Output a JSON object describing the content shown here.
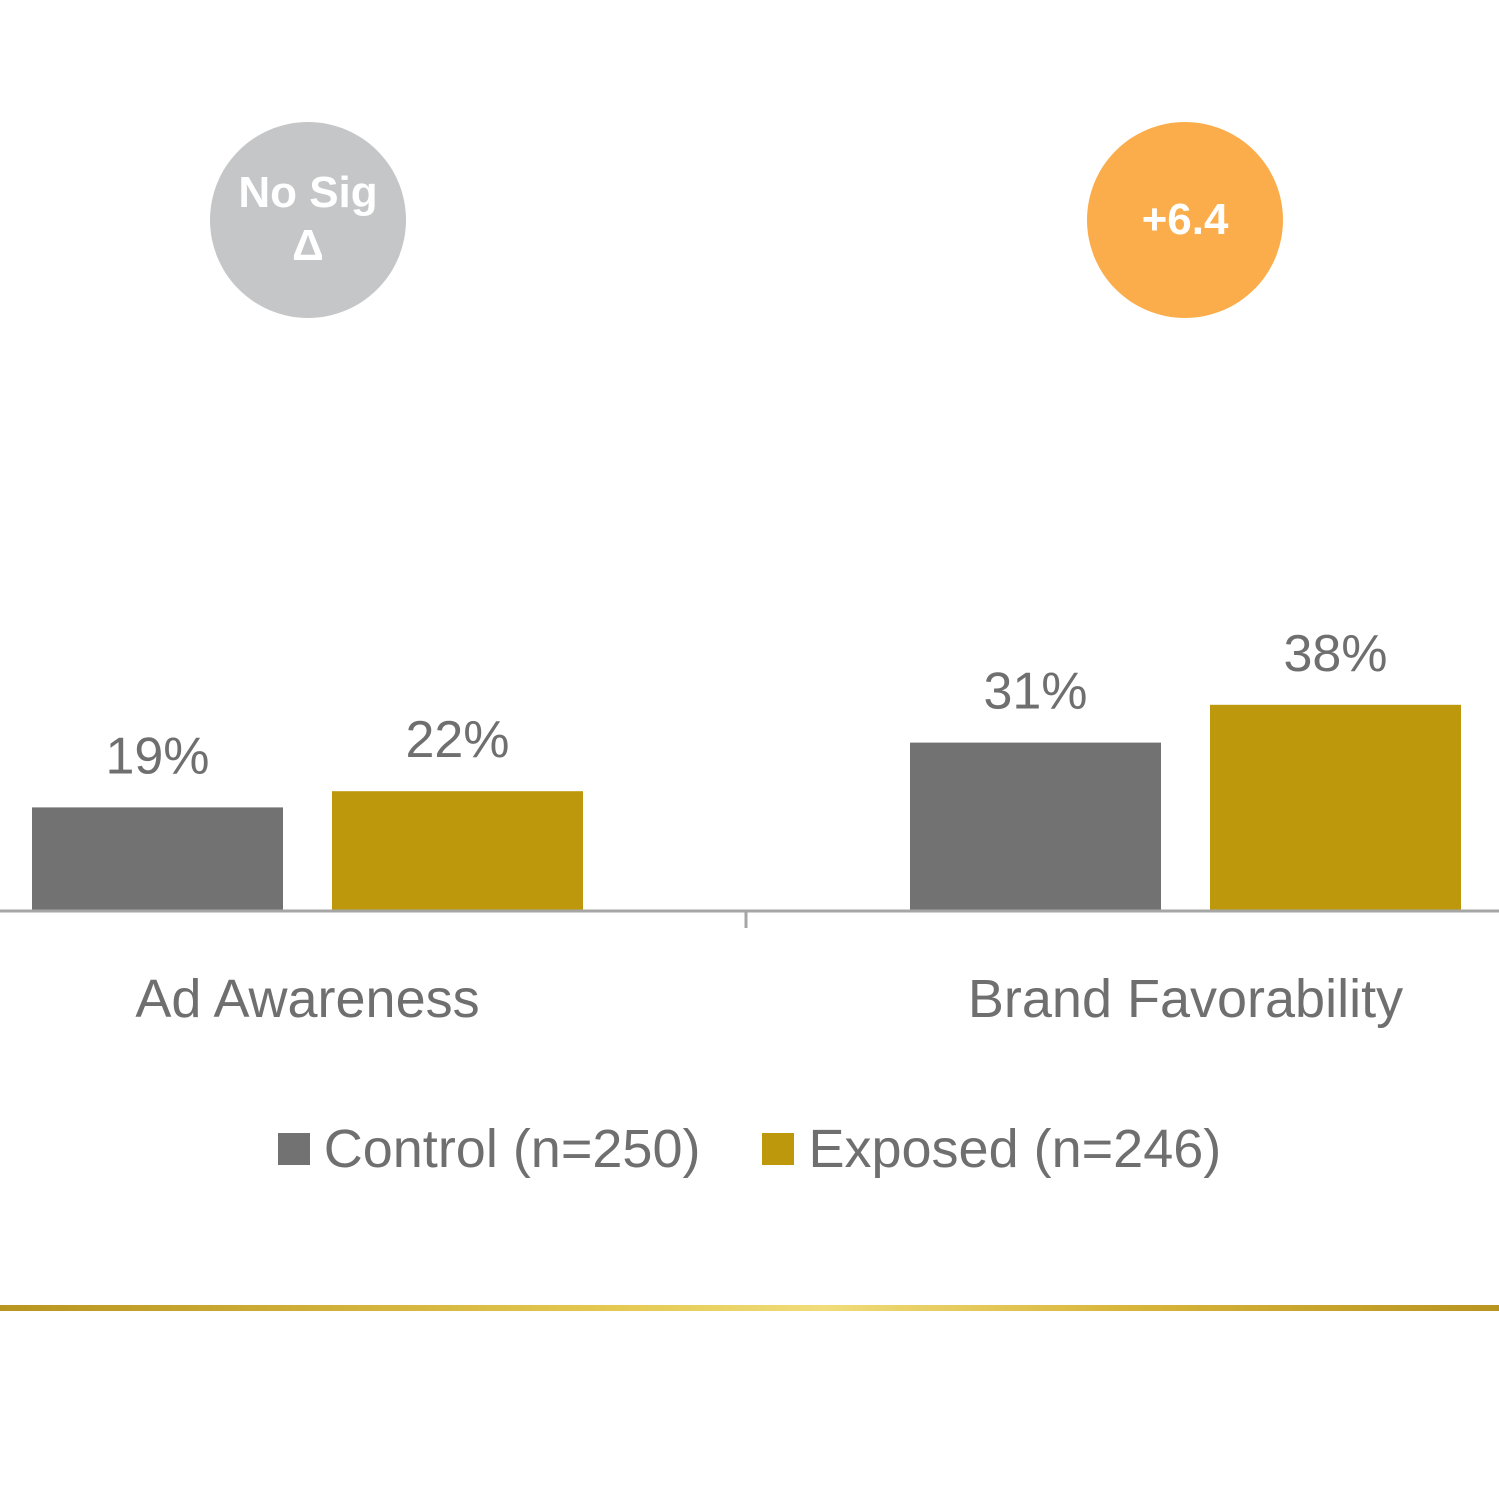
{
  "badges": [
    {
      "line1": "No Sig",
      "line2": "Δ",
      "color": "#c5c6c8"
    },
    {
      "line1": "+6.4",
      "color": "#fbad4b"
    }
  ],
  "chart_data": {
    "type": "bar",
    "categories": [
      "Ad Awareness",
      "Brand Favorability"
    ],
    "series": [
      {
        "name": "Control (n=250)",
        "values": [
          19,
          31
        ],
        "labels": [
          "19%",
          "31%"
        ],
        "color": "#727272"
      },
      {
        "name": "Exposed (n=246)",
        "values": [
          22,
          38
        ],
        "labels": [
          "22%",
          "38%"
        ],
        "color": "#bd980d"
      }
    ],
    "ylim": [
      0,
      100
    ],
    "legend_position": "bottom",
    "grid": false
  }
}
